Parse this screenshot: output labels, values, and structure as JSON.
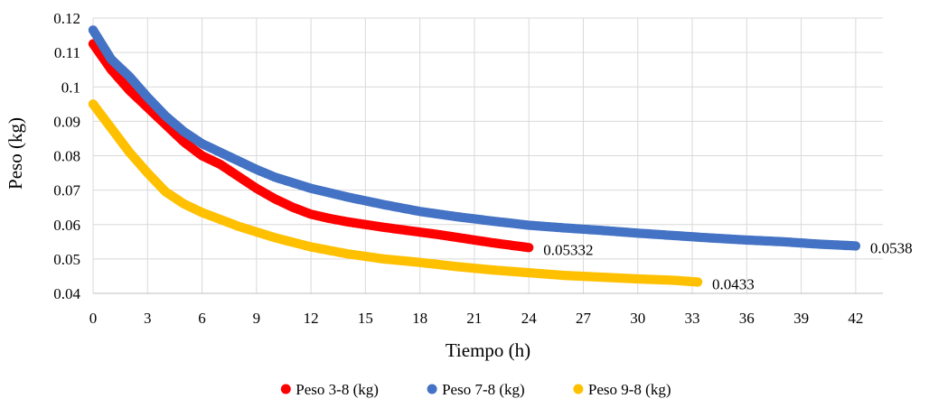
{
  "chart_data": {
    "type": "scatter",
    "title": "",
    "xlabel": "Tiempo (h)",
    "ylabel": "Peso (kg)",
    "xlim": [
      0,
      43.5
    ],
    "ylim": [
      0.04,
      0.12
    ],
    "x_ticks": [
      0,
      3,
      6,
      9,
      12,
      15,
      18,
      21,
      24,
      27,
      30,
      33,
      36,
      39,
      42
    ],
    "y_ticks": [
      0.04,
      0.05,
      0.06,
      0.07,
      0.08,
      0.09,
      0.1,
      0.11,
      0.12
    ],
    "x_tick_labels": [
      "0",
      "3",
      "6",
      "9",
      "12",
      "15",
      "18",
      "21",
      "24",
      "27",
      "30",
      "33",
      "36",
      "39",
      "42"
    ],
    "y_tick_labels": [
      "0.04",
      "0.05",
      "0.06",
      "0.07",
      "0.08",
      "0.09",
      "0.1",
      "0.11",
      "0.12"
    ],
    "grid": true,
    "legend_position": "bottom",
    "series": [
      {
        "name": "Peso 3-8 (kg)",
        "color": "#ff0000",
        "points": [
          [
            0,
            0.1125
          ],
          [
            1,
            0.105
          ],
          [
            2,
            0.099
          ],
          [
            3,
            0.094
          ],
          [
            4,
            0.089
          ],
          [
            5,
            0.084
          ],
          [
            6,
            0.08
          ],
          [
            7,
            0.0775
          ],
          [
            8,
            0.074
          ],
          [
            9,
            0.0705
          ],
          [
            10,
            0.0675
          ],
          [
            11,
            0.065
          ],
          [
            12,
            0.063
          ],
          [
            13,
            0.0618
          ],
          [
            14,
            0.0608
          ],
          [
            15,
            0.06
          ],
          [
            16,
            0.0592
          ],
          [
            17,
            0.0585
          ],
          [
            18,
            0.0578
          ],
          [
            19,
            0.0571
          ],
          [
            20,
            0.0563
          ],
          [
            21,
            0.0555
          ],
          [
            22,
            0.0547
          ],
          [
            23,
            0.054
          ],
          [
            24,
            0.0533
          ]
        ],
        "end_label": "0.05332"
      },
      {
        "name": "Peso 7-8 (kg)",
        "color": "#4472c4",
        "points": [
          [
            0,
            0.1165
          ],
          [
            1,
            0.108
          ],
          [
            2,
            0.103
          ],
          [
            3,
            0.097
          ],
          [
            4,
            0.0915
          ],
          [
            5,
            0.087
          ],
          [
            6,
            0.0835
          ],
          [
            7,
            0.081
          ],
          [
            8,
            0.0785
          ],
          [
            9,
            0.076
          ],
          [
            10,
            0.0738
          ],
          [
            12,
            0.0705
          ],
          [
            14,
            0.068
          ],
          [
            16,
            0.0658
          ],
          [
            18,
            0.0638
          ],
          [
            20,
            0.0623
          ],
          [
            22,
            0.061
          ],
          [
            24,
            0.0598
          ],
          [
            26,
            0.059
          ],
          [
            28,
            0.0583
          ],
          [
            30,
            0.0575
          ],
          [
            32,
            0.0568
          ],
          [
            34,
            0.0561
          ],
          [
            36,
            0.0555
          ],
          [
            38,
            0.055
          ],
          [
            40,
            0.0543
          ],
          [
            42,
            0.0538
          ]
        ],
        "end_label": "0.0538"
      },
      {
        "name": "Peso 9-8 (kg)",
        "color": "#ffc000",
        "points": [
          [
            0,
            0.095
          ],
          [
            1,
            0.088
          ],
          [
            2,
            0.081
          ],
          [
            3,
            0.075
          ],
          [
            4,
            0.0695
          ],
          [
            5,
            0.066
          ],
          [
            6,
            0.0635
          ],
          [
            8,
            0.0595
          ],
          [
            10,
            0.0562
          ],
          [
            12,
            0.0535
          ],
          [
            14,
            0.0515
          ],
          [
            16,
            0.05
          ],
          [
            18,
            0.049
          ],
          [
            20,
            0.0478
          ],
          [
            22,
            0.0468
          ],
          [
            24,
            0.046
          ],
          [
            26,
            0.0452
          ],
          [
            28,
            0.0447
          ],
          [
            30,
            0.0442
          ],
          [
            32,
            0.0438
          ],
          [
            33.3,
            0.0433
          ]
        ],
        "end_label": "0.0433"
      }
    ]
  }
}
